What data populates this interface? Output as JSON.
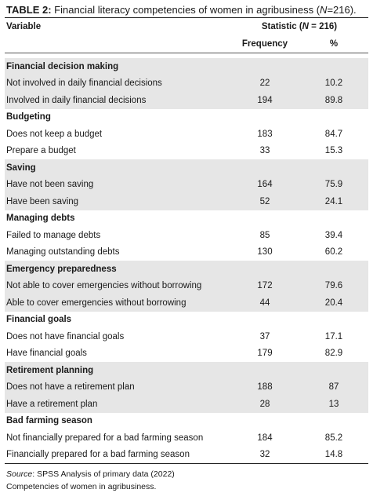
{
  "caption": {
    "label": "TABLE 2:",
    "text": " Financial literacy competencies of women in agribusiness (",
    "n_var": "N",
    "n_value": "=216)."
  },
  "header": {
    "variable": "Variable",
    "statistic_prefix": "Statistic (",
    "statistic_var": "N",
    "statistic_suffix": " = 216)",
    "frequency": "Frequency",
    "percent": "%"
  },
  "groups": [
    {
      "title": "Financial decision making",
      "shaded": true,
      "rows": [
        {
          "label": "Not involved in daily financial decisions",
          "frequency": "22",
          "percent": "10.2"
        },
        {
          "label": "Involved in daily financial decisions",
          "frequency": "194",
          "percent": "89.8"
        }
      ]
    },
    {
      "title": "Budgeting",
      "shaded": false,
      "rows": [
        {
          "label": "Does not keep a budget",
          "frequency": "183",
          "percent": "84.7"
        },
        {
          "label": "Prepare a budget",
          "frequency": "33",
          "percent": "15.3"
        }
      ]
    },
    {
      "title": "Saving",
      "shaded": true,
      "rows": [
        {
          "label": "Have not been saving",
          "frequency": "164",
          "percent": "75.9"
        },
        {
          "label": "Have been saving",
          "frequency": "52",
          "percent": "24.1"
        }
      ]
    },
    {
      "title": "Managing debts",
      "shaded": false,
      "rows": [
        {
          "label": "Failed to manage debts",
          "frequency": "85",
          "percent": "39.4"
        },
        {
          "label": "Managing outstanding debts",
          "frequency": "130",
          "percent": "60.2"
        }
      ]
    },
    {
      "title": "Emergency preparedness",
      "shaded": true,
      "rows": [
        {
          "label": "Not able to cover emergencies without borrowing",
          "frequency": "172",
          "percent": "79.6"
        },
        {
          "label": "Able to cover emergencies without borrowing",
          "frequency": "44",
          "percent": "20.4"
        }
      ]
    },
    {
      "title": "Financial goals",
      "shaded": false,
      "rows": [
        {
          "label": "Does not have financial goals",
          "frequency": "37",
          "percent": "17.1"
        },
        {
          "label": "Have financial goals",
          "frequency": "179",
          "percent": "82.9"
        }
      ]
    },
    {
      "title": "Retirement planning",
      "shaded": true,
      "rows": [
        {
          "label": "Does not have a retirement plan",
          "frequency": "188",
          "percent": "87"
        },
        {
          "label": "Have a retirement plan",
          "frequency": "28",
          "percent": "13"
        }
      ]
    },
    {
      "title": "Bad farming season",
      "shaded": false,
      "rows": [
        {
          "label": "Not financially prepared for a bad farming season",
          "frequency": "184",
          "percent": "85.2"
        },
        {
          "label": "Financially prepared for a bad farming season",
          "frequency": "32",
          "percent": "14.8"
        }
      ]
    }
  ],
  "footer": {
    "source_label": "Source",
    "source_text": ": SPSS Analysis of primary data (2022)",
    "note": "Competencies of women in agribusiness."
  }
}
